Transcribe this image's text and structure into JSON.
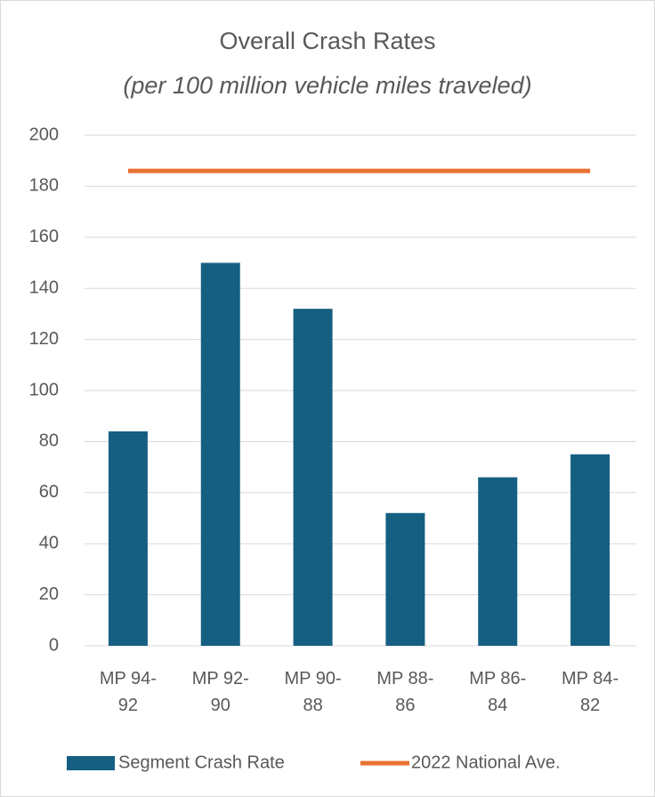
{
  "chart_data": {
    "type": "bar",
    "title": "Overall Crash Rates",
    "subtitle": "(per 100 million vehicle miles traveled)",
    "categories": [
      "MP 94-92",
      "MP 92-90",
      "MP 90-88",
      "MP 88-86",
      "MP 86-84",
      "MP 84-82"
    ],
    "series": [
      {
        "name": "Segment Crash Rate",
        "type": "bar",
        "color": "#155f82",
        "values": [
          84,
          150,
          132,
          52,
          66,
          75
        ]
      },
      {
        "name": "2022 National Ave.",
        "type": "line",
        "color": "#e97132",
        "values": [
          186,
          186,
          186,
          186,
          186,
          186
        ]
      }
    ],
    "ylim": [
      0,
      200
    ],
    "yticks": [
      0,
      20,
      40,
      60,
      80,
      100,
      120,
      140,
      160,
      180,
      200
    ],
    "grid": true,
    "legend": "bottom"
  }
}
